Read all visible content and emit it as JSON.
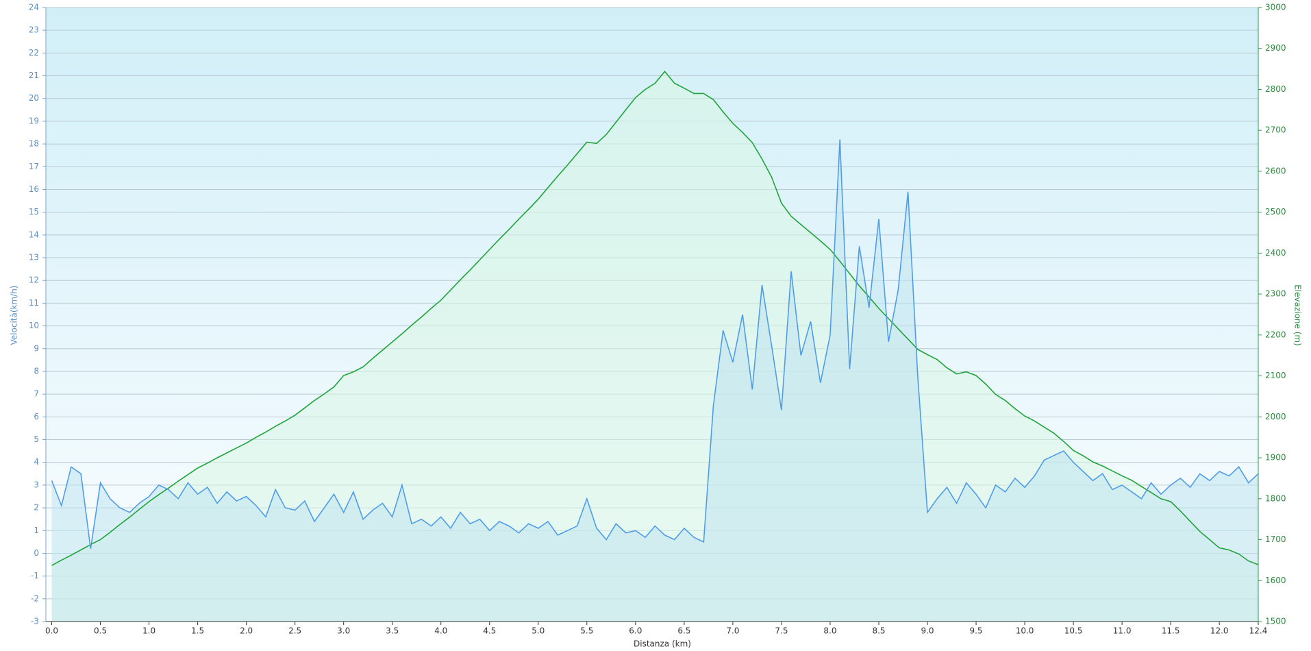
{
  "chart_data": {
    "type": "line",
    "area": true,
    "grid": true,
    "xlabel": "Distanza  (km)",
    "ylabel": "Velocità(km/h)",
    "y2label": "Elevazione (m)",
    "xlim": [
      -0.06,
      12.4
    ],
    "xticks": [
      {
        "value": 0,
        "label": "0.0"
      },
      0.5,
      {
        "value": 1,
        "label": "1.0"
      },
      1.5,
      {
        "value": 2,
        "label": "2.0"
      },
      2.5,
      {
        "value": 3,
        "label": "3.0"
      },
      3.5,
      {
        "value": 4,
        "label": "4.0"
      },
      4.5,
      {
        "value": 5,
        "label": "5.0"
      },
      5.5,
      {
        "value": 6,
        "label": "6.0"
      },
      6.5,
      {
        "value": 7,
        "label": "7.0"
      },
      7.5,
      {
        "value": 8,
        "label": "8.0"
      },
      8.5,
      {
        "value": 9,
        "label": "9.0"
      },
      9.5,
      {
        "value": 10,
        "label": "10.0"
      },
      10.5,
      {
        "value": 11,
        "label": "11.0"
      },
      11.5,
      {
        "value": 12,
        "label": "12.0"
      },
      12.4
    ],
    "ylim": [
      -3,
      24
    ],
    "yticks": [
      -3,
      -2,
      -1,
      0,
      1,
      2,
      3,
      4,
      5,
      6,
      7,
      8,
      9,
      10,
      11,
      12,
      13,
      14,
      15,
      16,
      17,
      18,
      19,
      20,
      21,
      22,
      23,
      24
    ],
    "y2lim": [
      1500,
      3000
    ],
    "y2ticks": [
      1500,
      1600,
      1700,
      1800,
      1900,
      2000,
      2100,
      2200,
      2300,
      2400,
      2500,
      2600,
      2700,
      2800,
      2900,
      3000
    ],
    "x": [
      0,
      0.1,
      0.2,
      0.3,
      0.4,
      0.5,
      0.6,
      0.7,
      0.8,
      0.9,
      1,
      1.1,
      1.2,
      1.3,
      1.4,
      1.5,
      1.6,
      1.7,
      1.8,
      1.9,
      2,
      2.1,
      2.2,
      2.3,
      2.4,
      2.5,
      2.6,
      2.7,
      2.8,
      2.9,
      3,
      3.1,
      3.2,
      3.3,
      3.4,
      3.5,
      3.6,
      3.7,
      3.8,
      3.9,
      4,
      4.1,
      4.2,
      4.3,
      4.4,
      4.5,
      4.6,
      4.7,
      4.8,
      4.9,
      5,
      5.1,
      5.2,
      5.3,
      5.4,
      5.5,
      5.6,
      5.7,
      5.8,
      5.9,
      6,
      6.1,
      6.2,
      6.3,
      6.4,
      6.5,
      6.6,
      6.7,
      6.8,
      6.9,
      7,
      7.1,
      7.2,
      7.3,
      7.4,
      7.5,
      7.6,
      7.7,
      7.8,
      7.9,
      8,
      8.1,
      8.2,
      8.3,
      8.4,
      8.5,
      8.6,
      8.7,
      8.8,
      8.9,
      9,
      9.1,
      9.2,
      9.3,
      9.4,
      9.5,
      9.6,
      9.7,
      9.8,
      9.9,
      10,
      10.1,
      10.2,
      10.3,
      10.4,
      10.5,
      10.6,
      10.7,
      10.8,
      10.9,
      11,
      11.1,
      11.2,
      11.3,
      11.4,
      11.5,
      11.6,
      11.7,
      11.8,
      11.9,
      12,
      12.1,
      12.2,
      12.3,
      12.4
    ],
    "series": [
      {
        "name": "Elevazione",
        "axis": "y2",
        "color": "#1fa33a",
        "fill": "#d8f5e4",
        "values": [
          1637,
          1650,
          1662,
          1675,
          1688,
          1700,
          1718,
          1737,
          1755,
          1774,
          1793,
          1810,
          1826,
          1843,
          1859,
          1875,
          1887,
          1900,
          1912,
          1924,
          1936,
          1950,
          1963,
          1977,
          1990,
          2004,
          2022,
          2040,
          2056,
          2073,
          2101,
          2110,
          2122,
          2143,
          2163,
          2183,
          2203,
          2224,
          2244,
          2265,
          2285,
          2310,
          2335,
          2359,
          2384,
          2409,
          2434,
          2458,
          2483,
          2507,
          2532,
          2560,
          2588,
          2615,
          2643,
          2671,
          2668,
          2690,
          2720,
          2750,
          2780,
          2800,
          2815,
          2844,
          2815,
          2803,
          2790,
          2790,
          2775,
          2745,
          2717,
          2695,
          2670,
          2630,
          2585,
          2522,
          2490,
          2470,
          2450,
          2430,
          2409,
          2380,
          2350,
          2320,
          2293,
          2265,
          2240,
          2215,
          2190,
          2165,
          2152,
          2140,
          2120,
          2105,
          2110,
          2101,
          2080,
          2055,
          2040,
          2020,
          2002,
          1990,
          1975,
          1960,
          1940,
          1918,
          1905,
          1890,
          1880,
          1868,
          1856,
          1845,
          1830,
          1815,
          1800,
          1793,
          1770,
          1745,
          1720,
          1700,
          1680,
          1675,
          1665,
          1648,
          1639
        ]
      },
      {
        "name": "Velocità",
        "color": "#4f9de8",
        "fill": "#bfe3ee",
        "values": [
          3.2,
          2.1,
          3.8,
          3.5,
          0.2,
          3.1,
          2.4,
          2.0,
          1.8,
          2.2,
          2.5,
          3.0,
          2.8,
          2.4,
          3.1,
          2.6,
          2.9,
          2.2,
          2.7,
          2.3,
          2.5,
          2.1,
          1.6,
          2.8,
          2.0,
          1.9,
          2.3,
          1.4,
          2.0,
          2.6,
          1.8,
          2.7,
          1.5,
          1.9,
          2.2,
          1.6,
          3.0,
          1.3,
          1.5,
          1.2,
          1.6,
          1.1,
          1.8,
          1.3,
          1.5,
          1.0,
          1.4,
          1.2,
          0.9,
          1.3,
          1.1,
          1.4,
          0.8,
          1.0,
          1.2,
          2.4,
          1.1,
          0.6,
          1.3,
          0.9,
          1.0,
          0.7,
          1.2,
          0.8,
          0.6,
          1.1,
          0.7,
          0.5,
          6.5,
          9.8,
          8.4,
          10.5,
          7.2,
          11.8,
          9.1,
          6.3,
          12.4,
          8.7,
          10.2,
          7.5,
          9.6,
          18.2,
          8.1,
          13.5,
          10.8,
          14.7,
          9.3,
          11.6,
          15.9,
          7.8,
          1.8,
          2.4,
          2.9,
          2.2,
          3.1,
          2.6,
          2.0,
          3.0,
          2.7,
          3.3,
          2.9,
          3.4,
          4.1,
          4.3,
          4.5,
          4.0,
          3.6,
          3.2,
          3.5,
          2.8,
          3.0,
          2.7,
          2.4,
          3.1,
          2.6,
          3.0,
          3.3,
          2.9,
          3.5,
          3.2,
          3.6,
          3.4,
          3.8,
          3.1,
          3.5
        ]
      }
    ]
  }
}
